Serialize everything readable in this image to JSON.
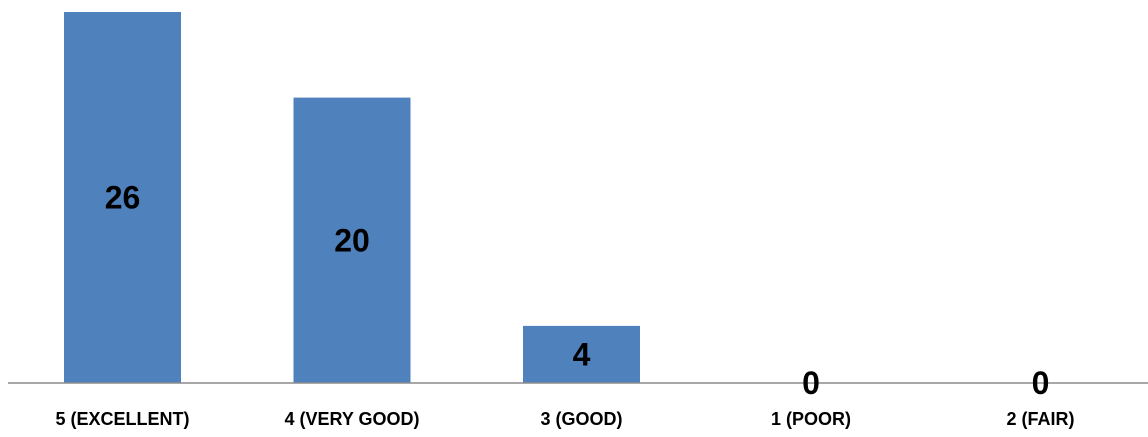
{
  "chart_data": {
    "type": "bar",
    "categories": [
      "5 (EXCELLENT)",
      "4 (VERY GOOD)",
      "3 (GOOD)",
      "1 (POOR)",
      "2 (FAIR)"
    ],
    "values": [
      26,
      20,
      4,
      0,
      0
    ],
    "data_labels": [
      "26",
      "20",
      "4",
      "0",
      "0"
    ],
    "title": "",
    "xlabel": "",
    "ylabel": "",
    "ylim": [
      0,
      26
    ],
    "grid": false,
    "legend": "none",
    "colors": {
      "bar": "#4f81bd",
      "axis": "#8c8c8c",
      "text": "#000000"
    }
  }
}
